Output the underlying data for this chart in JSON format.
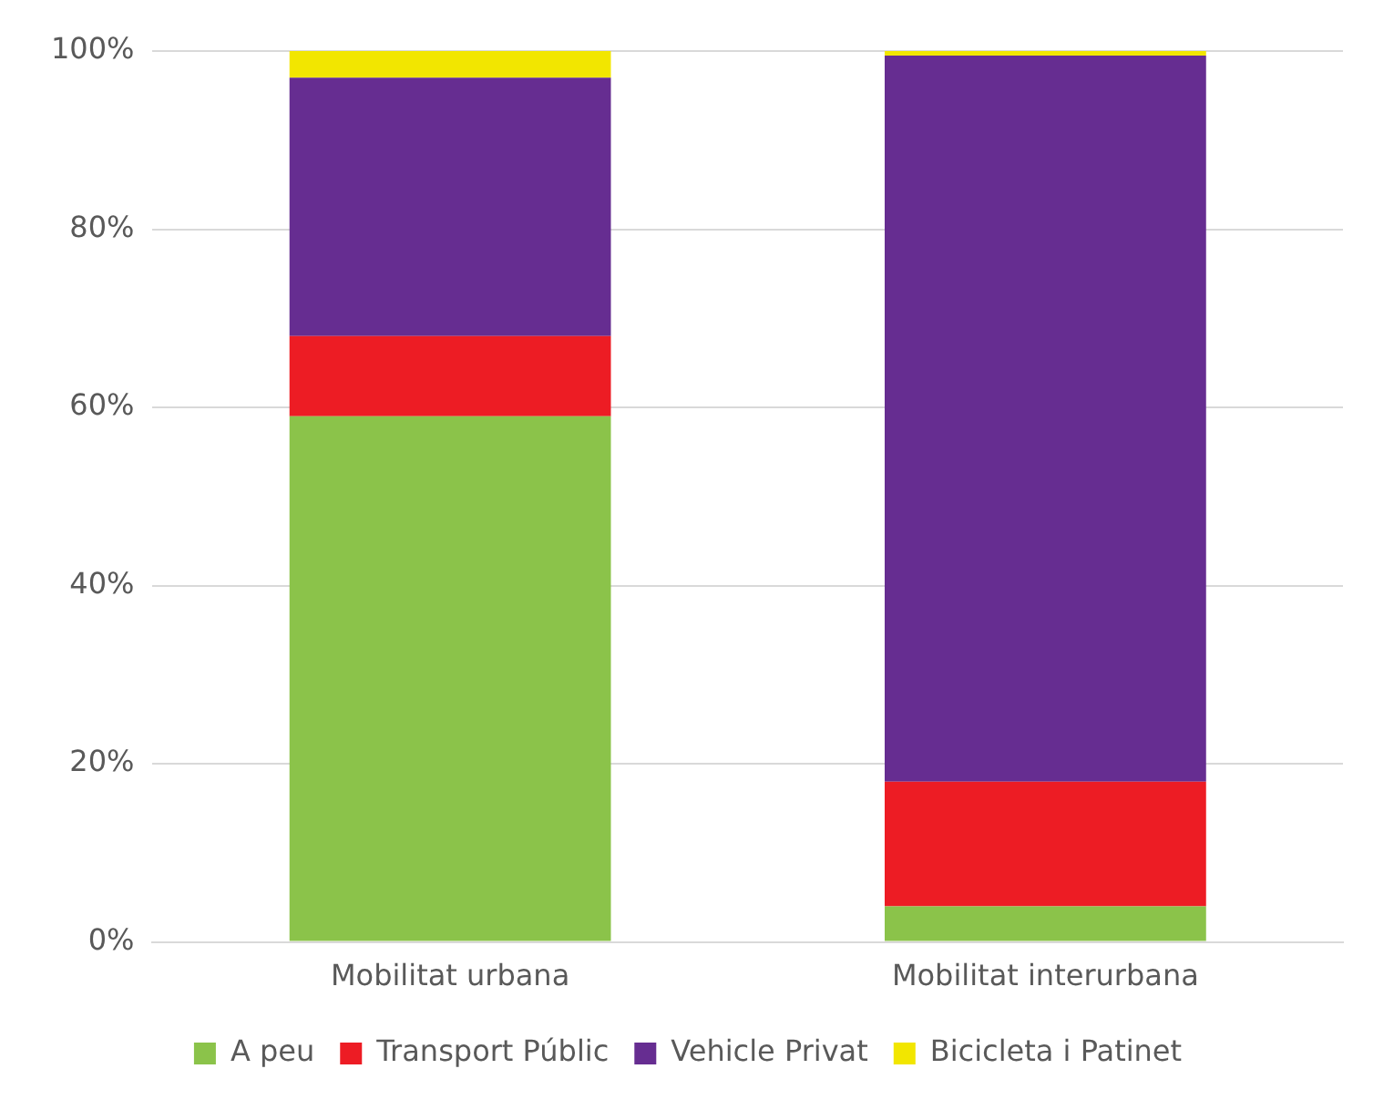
{
  "chart_data": {
    "type": "bar",
    "stacked": true,
    "categories": [
      "Mobilitat urbana",
      "Mobilitat interurbana"
    ],
    "series": [
      {
        "name": "A peu",
        "color": "#8bc34a",
        "values": [
          59,
          4
        ]
      },
      {
        "name": "Transport Públic",
        "color": "#ed1c24",
        "values": [
          9,
          14
        ]
      },
      {
        "name": "Vehicle Privat",
        "color": "#662d91",
        "values": [
          29,
          81.5
        ]
      },
      {
        "name": "Bicicleta i Patinet",
        "color": "#f2e600",
        "values": [
          3,
          0.5
        ]
      }
    ],
    "ylim": [
      0,
      100
    ],
    "yticks": [
      {
        "value": 0,
        "label": "0%"
      },
      {
        "value": 20,
        "label": "20%"
      },
      {
        "value": 40,
        "label": "40%"
      },
      {
        "value": 60,
        "label": "60%"
      },
      {
        "value": 80,
        "label": "80%"
      },
      {
        "value": 100,
        "label": "100%"
      }
    ],
    "grid": "y",
    "legend": "bottom"
  }
}
